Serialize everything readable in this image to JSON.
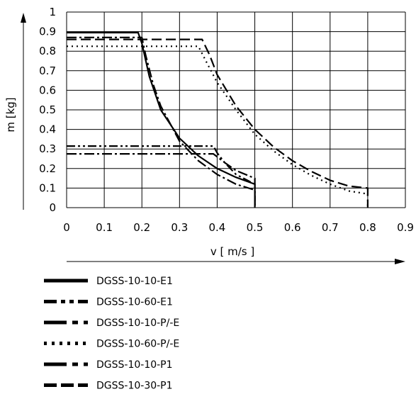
{
  "chart_data": {
    "type": "line",
    "xlabel": "v [ m/s ]",
    "ylabel": "m [kg]",
    "xlim": [
      0,
      0.9
    ],
    "ylim": [
      0,
      1
    ],
    "xticks": [
      0,
      0.1,
      0.2,
      0.3,
      0.4,
      0.5,
      0.6,
      0.7,
      0.8,
      0.9
    ],
    "yticks": [
      0,
      0.1,
      0.2,
      0.3,
      0.4,
      0.5,
      0.6,
      0.7,
      0.8,
      0.9,
      1
    ],
    "xtick_labels": [
      "0",
      "0.1",
      "0.2",
      "0.3",
      "0.4",
      "0.5",
      "0.6",
      "0.7",
      "0.8",
      "0.9"
    ],
    "ytick_labels": [
      "0",
      "0.1",
      "0.2",
      "0.3",
      "0.4",
      "0.5",
      "0.6",
      "0.7",
      "0.8",
      "0.9",
      "1"
    ],
    "grid": true,
    "legend_position": "bottom",
    "series": [
      {
        "name": "DGSS-10-10-E1",
        "style": "solid",
        "color": "#000000",
        "points": [
          [
            0,
            0.895
          ],
          [
            0.19,
            0.895
          ],
          [
            0.2,
            0.84
          ],
          [
            0.22,
            0.67
          ],
          [
            0.25,
            0.5
          ],
          [
            0.3,
            0.355
          ],
          [
            0.35,
            0.265
          ],
          [
            0.4,
            0.2
          ],
          [
            0.45,
            0.155
          ],
          [
            0.5,
            0.12
          ],
          [
            0.5,
            0
          ]
        ]
      },
      {
        "name": "DGSS-10-60-E1",
        "style": "dash-dot-dot",
        "color": "#000000",
        "points": [
          [
            0,
            0.315
          ],
          [
            0.39,
            0.315
          ],
          [
            0.4,
            0.28
          ],
          [
            0.42,
            0.23
          ],
          [
            0.45,
            0.17
          ],
          [
            0.5,
            0.12
          ],
          [
            0.5,
            0
          ]
        ]
      },
      {
        "name": "DGSS-10-10-P/-E",
        "style": "dash-dot",
        "color": "#000000",
        "points": [
          [
            0,
            0.87
          ],
          [
            0.2,
            0.87
          ],
          [
            0.21,
            0.78
          ],
          [
            0.23,
            0.63
          ],
          [
            0.25,
            0.52
          ],
          [
            0.3,
            0.34
          ],
          [
            0.35,
            0.24
          ],
          [
            0.4,
            0.17
          ],
          [
            0.45,
            0.12
          ],
          [
            0.5,
            0.09
          ],
          [
            0.5,
            0
          ]
        ]
      },
      {
        "name": "DGSS-10-60-P/-E",
        "style": "dotted",
        "color": "#000000",
        "points": [
          [
            0,
            0.825
          ],
          [
            0.35,
            0.825
          ],
          [
            0.37,
            0.75
          ],
          [
            0.4,
            0.64
          ],
          [
            0.45,
            0.5
          ],
          [
            0.5,
            0.375
          ],
          [
            0.55,
            0.29
          ],
          [
            0.6,
            0.22
          ],
          [
            0.65,
            0.165
          ],
          [
            0.7,
            0.12
          ],
          [
            0.75,
            0.085
          ],
          [
            0.8,
            0.07
          ],
          [
            0.8,
            0
          ]
        ]
      },
      {
        "name": "DGSS-10-10-P1",
        "style": "dash-dot",
        "color": "#000000",
        "points": [
          [
            0,
            0.275
          ],
          [
            0.39,
            0.275
          ],
          [
            0.4,
            0.26
          ],
          [
            0.42,
            0.23
          ],
          [
            0.45,
            0.19
          ],
          [
            0.5,
            0.15
          ],
          [
            0.5,
            0
          ]
        ]
      },
      {
        "name": "DGSS-10-30-P1",
        "style": "dashed",
        "color": "#000000",
        "points": [
          [
            0,
            0.86
          ],
          [
            0.36,
            0.86
          ],
          [
            0.38,
            0.78
          ],
          [
            0.4,
            0.68
          ],
          [
            0.45,
            0.52
          ],
          [
            0.5,
            0.4
          ],
          [
            0.55,
            0.31
          ],
          [
            0.6,
            0.24
          ],
          [
            0.65,
            0.185
          ],
          [
            0.7,
            0.14
          ],
          [
            0.75,
            0.11
          ],
          [
            0.8,
            0.1
          ],
          [
            0.8,
            0
          ]
        ]
      }
    ]
  }
}
